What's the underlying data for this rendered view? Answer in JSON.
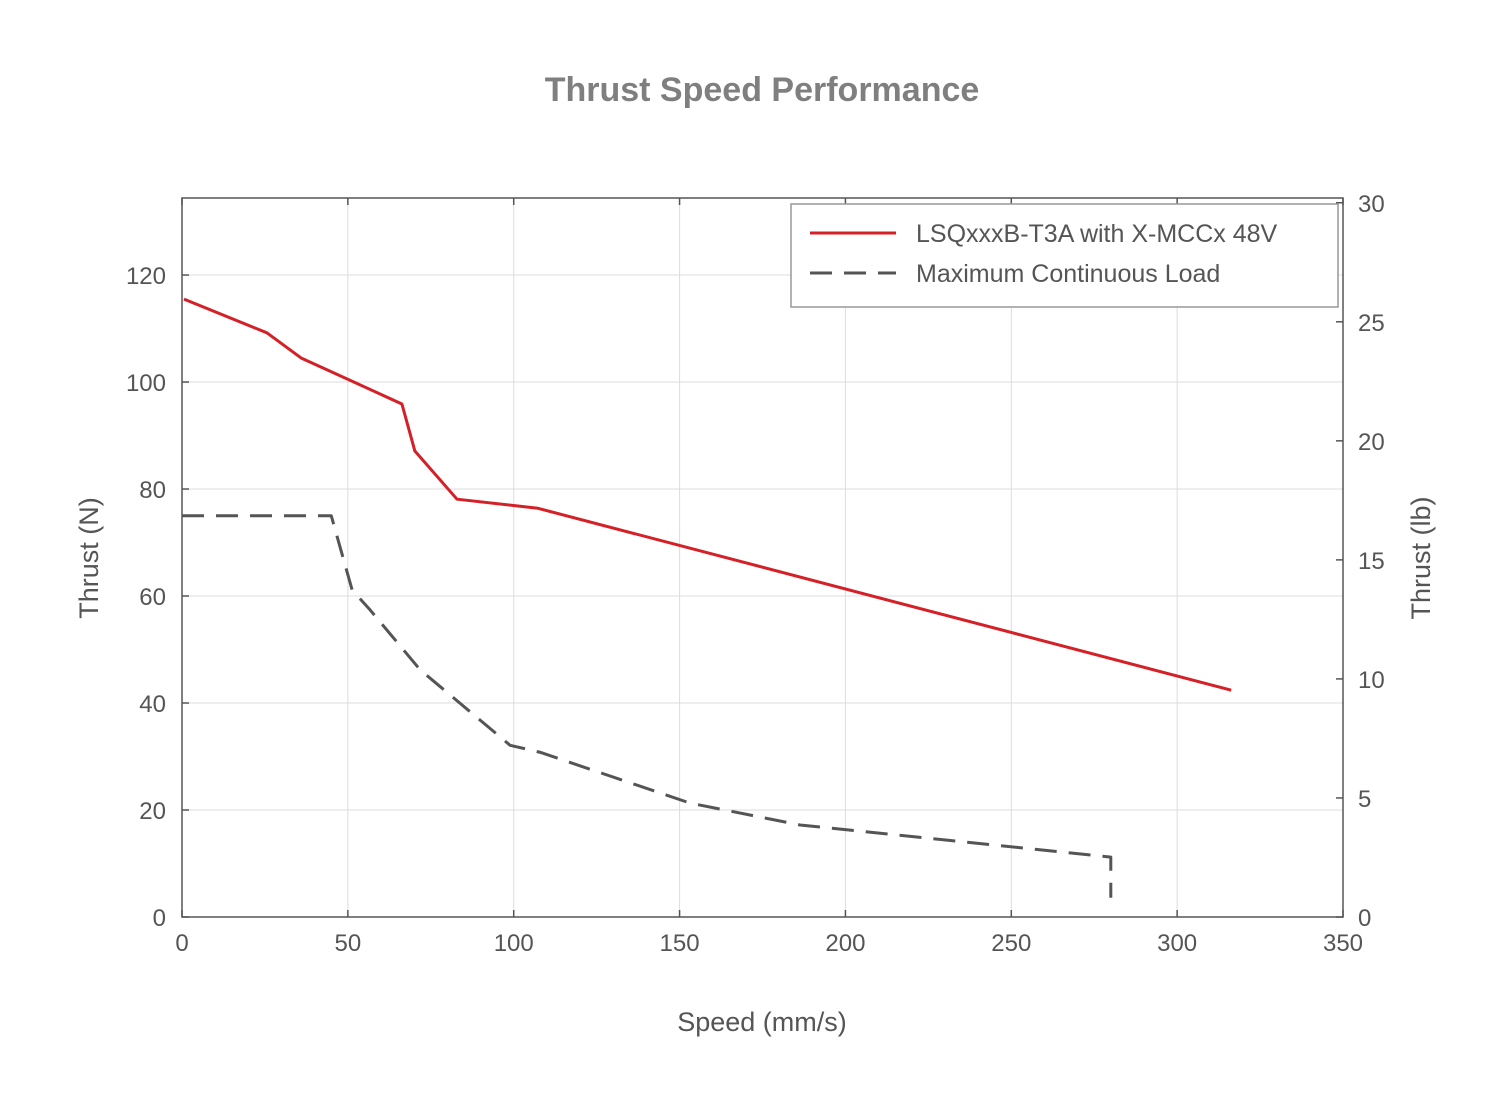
{
  "chart_data": {
    "type": "line",
    "title": "Thrust Speed Performance",
    "xlabel": "Speed (mm/s)",
    "ylabel": "Thrust (N)",
    "ylabel_right": "Thrust (lb)",
    "xlim": [
      0,
      350
    ],
    "ylim": [
      0,
      134.4
    ],
    "ylim_right": [
      0,
      30.2
    ],
    "xticks": [
      0,
      50,
      100,
      150,
      200,
      250,
      300,
      350
    ],
    "yticks": [
      0,
      20,
      40,
      60,
      80,
      100,
      120
    ],
    "yticks_right": [
      0,
      5,
      10,
      15,
      20,
      25,
      30
    ],
    "grid": true,
    "legend_position": "top-right",
    "series": [
      {
        "name": "LSQxxxB-T3A with X-MCCx 48V",
        "color": "#d42026",
        "style": "solid",
        "x": [
          0.6,
          25.6,
          35.9,
          66.3,
          70.2,
          82.9,
          107.3,
          316.3
        ],
        "y": [
          115.5,
          109.2,
          104.5,
          95.9,
          87.1,
          78.1,
          76.4,
          42.4
        ]
      },
      {
        "name": "Maximum Continuous Load",
        "color": "#555555",
        "style": "dashed",
        "x": [
          0,
          45,
          51.3,
          56.7,
          71.8,
          98.9,
          107.9,
          153.1,
          186.3,
          280.0,
          280.0
        ],
        "y": [
          75,
          75,
          61.1,
          57.4,
          46.2,
          32.1,
          30.8,
          21.3,
          17.2,
          11.2,
          3.6
        ]
      }
    ]
  }
}
